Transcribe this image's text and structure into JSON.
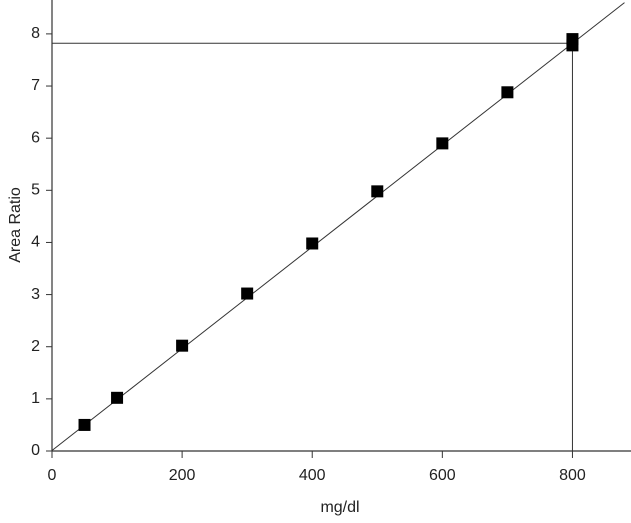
{
  "chart_data": {
    "type": "scatter",
    "x_label": "mg/dl",
    "y_label": "Area Ratio",
    "x": [
      50,
      100,
      200,
      300,
      400,
      500,
      600,
      700,
      800,
      800
    ],
    "values": [
      0.5,
      1.02,
      2.02,
      3.02,
      3.98,
      4.98,
      5.9,
      6.88,
      7.78,
      7.9
    ],
    "color": "#000000",
    "fit_line": {
      "x": [
        0,
        880
      ],
      "values": [
        0.01,
        8.6
      ]
    },
    "reference": {
      "x": 800,
      "y": 7.82
    },
    "xlim": [
      0,
      890
    ],
    "ylim": [
      0,
      8.65
    ],
    "xticks": [
      0,
      200,
      400,
      600,
      800
    ],
    "yticks": [
      0,
      1,
      2,
      3,
      4,
      5,
      6,
      7,
      8
    ]
  }
}
